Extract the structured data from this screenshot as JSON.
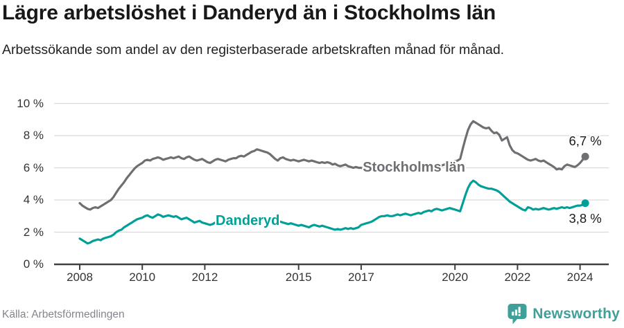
{
  "chart_data": {
    "type": "line",
    "title": "Lägre arbetslöshet i Danderyd än i Stockholms län",
    "subtitle": "Arbetssökande som andel av den registerbaserade arbetskraften månad för månad.",
    "x_start_year": 2008,
    "points_per_year": 12,
    "ylim": [
      0,
      10
    ],
    "grid": true,
    "legend_position": "inline-labels",
    "y_ticks": [
      {
        "value": 0,
        "label": "0 %"
      },
      {
        "value": 2,
        "label": "2 %"
      },
      {
        "value": 4,
        "label": "4 %"
      },
      {
        "value": 6,
        "label": "6 %"
      },
      {
        "value": 8,
        "label": "8 %"
      },
      {
        "value": 10,
        "label": "10 %"
      }
    ],
    "x_ticks": [
      {
        "year": 2008,
        "label": "2008"
      },
      {
        "year": 2010,
        "label": "2010"
      },
      {
        "year": 2012,
        "label": "2012"
      },
      {
        "year": 2015,
        "label": "2015"
      },
      {
        "year": 2017,
        "label": "2017"
      },
      {
        "year": 2020,
        "label": "2020"
      },
      {
        "year": 2022,
        "label": "2022"
      },
      {
        "year": 2024,
        "label": "2024"
      }
    ],
    "series": [
      {
        "name": "Stockholms län",
        "color": "#6e6e73",
        "end_label": "6,7 %",
        "end_value": 6.7,
        "end_label_side": "above",
        "label_anchor": {
          "year": 2018.69,
          "pct": 5.94
        },
        "values": [
          3.8,
          3.65,
          3.55,
          3.45,
          3.4,
          3.5,
          3.55,
          3.5,
          3.6,
          3.7,
          3.8,
          3.9,
          4.0,
          4.2,
          4.45,
          4.7,
          4.9,
          5.1,
          5.35,
          5.55,
          5.75,
          5.95,
          6.1,
          6.2,
          6.3,
          6.45,
          6.5,
          6.45,
          6.55,
          6.6,
          6.65,
          6.6,
          6.5,
          6.55,
          6.6,
          6.65,
          6.6,
          6.65,
          6.7,
          6.6,
          6.55,
          6.65,
          6.7,
          6.6,
          6.5,
          6.45,
          6.5,
          6.55,
          6.45,
          6.35,
          6.3,
          6.4,
          6.5,
          6.55,
          6.5,
          6.45,
          6.4,
          6.5,
          6.55,
          6.6,
          6.6,
          6.7,
          6.75,
          6.7,
          6.8,
          6.9,
          7.0,
          7.05,
          7.15,
          7.1,
          7.05,
          7.0,
          6.95,
          6.85,
          6.7,
          6.55,
          6.45,
          6.6,
          6.65,
          6.55,
          6.5,
          6.45,
          6.5,
          6.45,
          6.4,
          6.45,
          6.5,
          6.45,
          6.4,
          6.45,
          6.4,
          6.35,
          6.3,
          6.35,
          6.3,
          6.35,
          6.3,
          6.2,
          6.25,
          6.15,
          6.1,
          6.15,
          6.2,
          6.1,
          6.05,
          6.0,
          6.05,
          6.0,
          6.0,
          5.95,
          6.0,
          5.95,
          5.9,
          5.95,
          6.0,
          5.95,
          5.9,
          5.95,
          6.0,
          5.95,
          5.95,
          5.9,
          5.85,
          5.9,
          5.95,
          6.0,
          6.05,
          6.0,
          5.95,
          6.0,
          6.05,
          6.0,
          6.0,
          6.05,
          6.1,
          6.05,
          6.1,
          6.15,
          6.2,
          6.15,
          6.2,
          6.25,
          6.3,
          6.35,
          6.4,
          6.45,
          6.55,
          7.2,
          7.8,
          8.35,
          8.7,
          8.9,
          8.8,
          8.7,
          8.6,
          8.5,
          8.45,
          8.5,
          8.3,
          8.15,
          8.2,
          8.05,
          7.7,
          7.8,
          7.9,
          7.4,
          7.1,
          6.95,
          6.9,
          6.8,
          6.7,
          6.6,
          6.5,
          6.45,
          6.5,
          6.55,
          6.45,
          6.4,
          6.45,
          6.35,
          6.25,
          6.15,
          6.05,
          5.9,
          5.95,
          5.9,
          6.1,
          6.2,
          6.15,
          6.1,
          6.05,
          6.15,
          6.3,
          6.5,
          6.7
        ]
      },
      {
        "name": "Danderyd",
        "color": "#00a099",
        "end_label": "3,8 %",
        "end_value": 3.8,
        "end_label_side": "below",
        "label_anchor": {
          "year": 2013.37,
          "pct": 2.62
        },
        "values": [
          1.6,
          1.5,
          1.4,
          1.3,
          1.35,
          1.45,
          1.5,
          1.55,
          1.5,
          1.6,
          1.65,
          1.7,
          1.75,
          1.85,
          2.0,
          2.1,
          2.15,
          2.3,
          2.4,
          2.5,
          2.6,
          2.7,
          2.8,
          2.85,
          2.9,
          3.0,
          3.05,
          2.95,
          2.9,
          3.0,
          3.1,
          3.05,
          2.95,
          3.0,
          3.05,
          3.0,
          2.95,
          3.0,
          2.9,
          2.8,
          2.85,
          2.9,
          2.8,
          2.7,
          2.6,
          2.65,
          2.7,
          2.6,
          2.55,
          2.5,
          2.45,
          2.5,
          2.6,
          2.65,
          2.6,
          2.5,
          2.45,
          2.5,
          2.55,
          2.6,
          2.65,
          2.7,
          2.8,
          2.75,
          2.85,
          2.9,
          2.85,
          2.8,
          2.75,
          2.8,
          2.85,
          2.8,
          2.75,
          2.7,
          2.65,
          2.7,
          2.6,
          2.65,
          2.6,
          2.55,
          2.5,
          2.55,
          2.5,
          2.45,
          2.4,
          2.45,
          2.4,
          2.35,
          2.3,
          2.4,
          2.45,
          2.4,
          2.35,
          2.4,
          2.35,
          2.3,
          2.25,
          2.2,
          2.15,
          2.2,
          2.15,
          2.2,
          2.25,
          2.2,
          2.25,
          2.2,
          2.25,
          2.3,
          2.45,
          2.5,
          2.55,
          2.6,
          2.65,
          2.75,
          2.85,
          2.95,
          3.0,
          3.0,
          3.05,
          3.0,
          3.0,
          3.05,
          3.1,
          3.05,
          3.1,
          3.15,
          3.1,
          3.05,
          3.1,
          3.15,
          3.2,
          3.15,
          3.25,
          3.3,
          3.35,
          3.3,
          3.4,
          3.45,
          3.4,
          3.35,
          3.4,
          3.45,
          3.5,
          3.45,
          3.4,
          3.35,
          3.3,
          3.8,
          4.3,
          4.75,
          5.05,
          5.2,
          5.1,
          4.95,
          4.85,
          4.8,
          4.75,
          4.7,
          4.7,
          4.65,
          4.6,
          4.5,
          4.35,
          4.2,
          4.05,
          3.9,
          3.8,
          3.7,
          3.6,
          3.5,
          3.4,
          3.35,
          3.55,
          3.5,
          3.4,
          3.45,
          3.4,
          3.45,
          3.5,
          3.45,
          3.4,
          3.45,
          3.5,
          3.45,
          3.5,
          3.55,
          3.5,
          3.55,
          3.5,
          3.55,
          3.6,
          3.65,
          3.65,
          3.7,
          3.8
        ]
      }
    ]
  },
  "footer": {
    "source": "Källa: Arbetsförmedlingen",
    "brand": "Newsworthy"
  },
  "colors": {
    "series_gray": "#6e6e73",
    "series_teal": "#00a099",
    "brand_teal": "#3fa09a",
    "grid": "#dadada",
    "axis": "#3f3f3f"
  }
}
